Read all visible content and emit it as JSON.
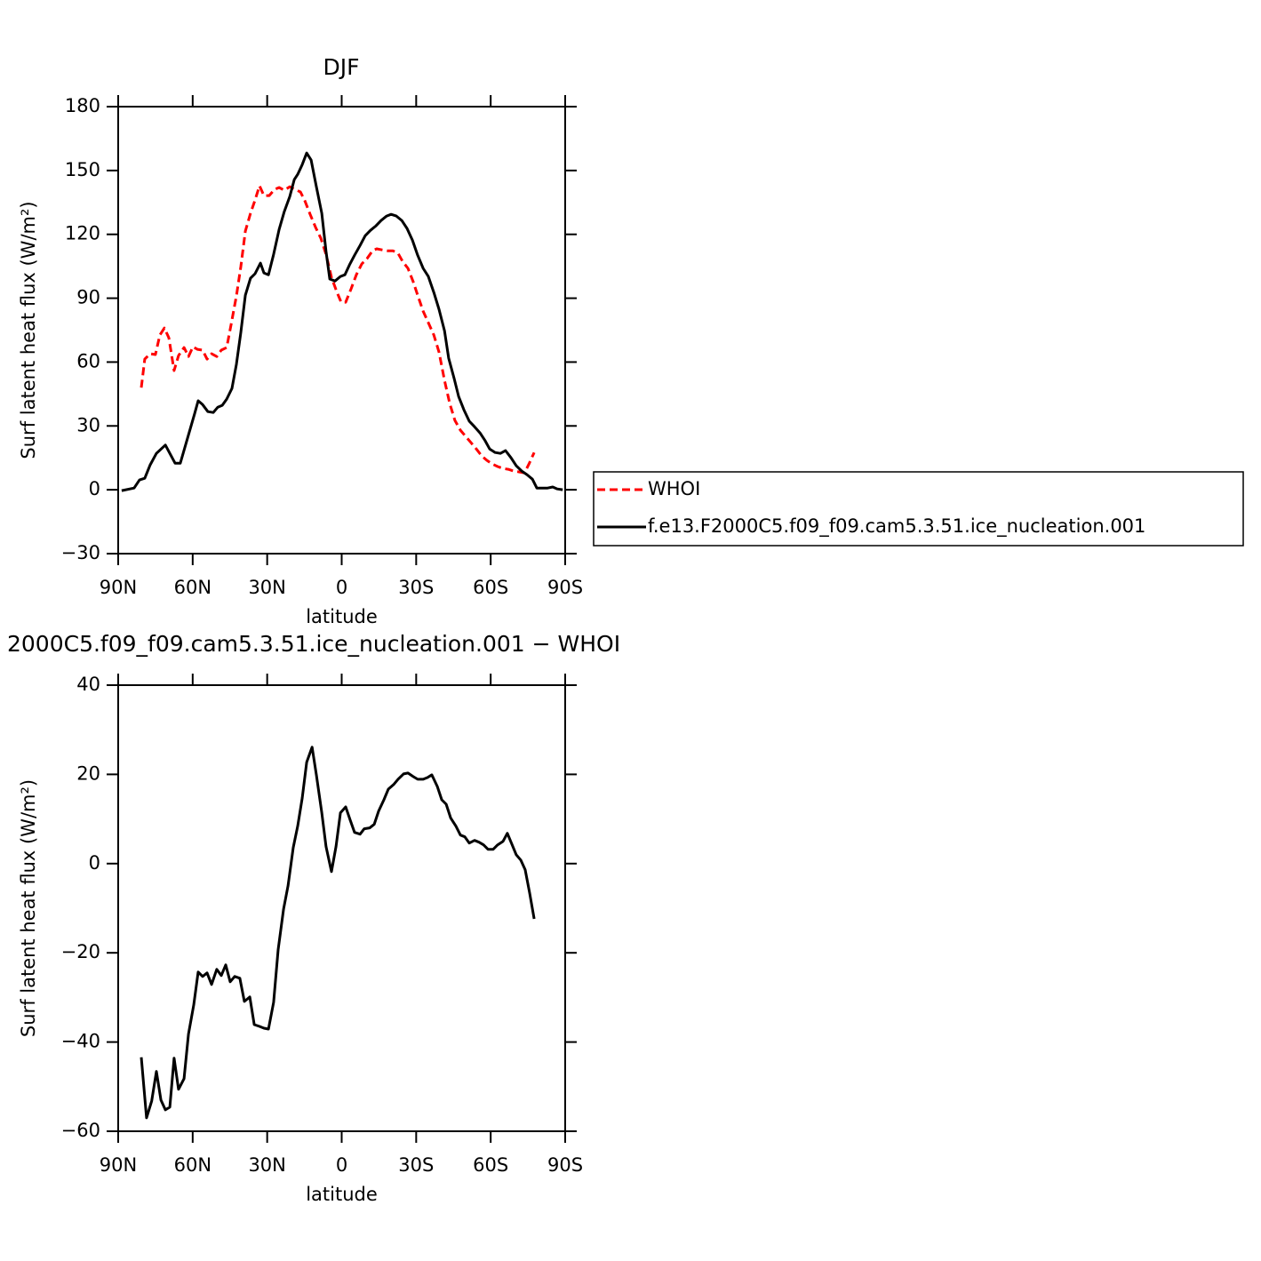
{
  "chart_data": [
    {
      "type": "line",
      "title": "DJF",
      "xlabel": "latitude",
      "ylabel": "Surf latent heat flux (W/m²)",
      "xlim": [
        90,
        -90
      ],
      "ylim": [
        -30,
        180
      ],
      "xticks": [
        {
          "value": 90,
          "label": "90N"
        },
        {
          "value": 60,
          "label": "60N"
        },
        {
          "value": 30,
          "label": "30N"
        },
        {
          "value": 0,
          "label": "0"
        },
        {
          "value": -30,
          "label": "30S"
        },
        {
          "value": -60,
          "label": "60S"
        },
        {
          "value": -90,
          "label": "90S"
        }
      ],
      "yticks": [
        {
          "value": -30,
          "label": "−30"
        },
        0,
        30,
        60,
        90,
        120,
        150,
        180
      ],
      "legend": "outside-right",
      "series": [
        {
          "name": "WHOI",
          "color": "#ff0000",
          "dash": true,
          "x": [
            80.7,
            79.3,
            77.1,
            75.0,
            73.2,
            71.4,
            69.6,
            67.5,
            65.7,
            63.5,
            61.7,
            59.9,
            58.1,
            56.0,
            54.2,
            52.4,
            50.3,
            48.5,
            46.3,
            44.5,
            42.4,
            40.6,
            38.8,
            36.7,
            34.9,
            33.1,
            31.3,
            29.2,
            27.0,
            25.2,
            23.1,
            20.9,
            18.8,
            16.6,
            14.8,
            12.7,
            10.5,
            8.4,
            6.3,
            4.1,
            2.0,
            0.2,
            -1.6,
            -3.8,
            -5.9,
            -8.1,
            -10.2,
            -12.4,
            -14.1,
            -16.3,
            -18.4,
            -20.6,
            -22.7,
            -24.5,
            -26.7,
            -28.8,
            -30.6,
            -32.8,
            -34.9,
            -37.1,
            -39.2,
            -41.4,
            -43.5,
            -45.6,
            -47.8,
            -49.9,
            -52.1,
            -54.2,
            -56.4,
            -58.5,
            -60.7,
            -62.8,
            -65.0,
            -67.1,
            -69.3,
            -71.4,
            -73.6,
            -75.4,
            -77.5
          ],
          "values": [
            48,
            61.4,
            63.9,
            63.5,
            72.7,
            76,
            71.4,
            56,
            63,
            66.8,
            62.6,
            67.2,
            66,
            65.6,
            61.4,
            63.9,
            62.6,
            65.6,
            66.8,
            77.7,
            91,
            104.8,
            121.5,
            129.9,
            136.1,
            142.8,
            138.2,
            138.2,
            141.1,
            142,
            140.7,
            142.4,
            141.1,
            139.9,
            135.7,
            129.4,
            123.2,
            118.2,
            110.6,
            99.8,
            93.1,
            88.1,
            88.1,
            94.4,
            101,
            106.1,
            108.6,
            112.3,
            113.2,
            112.7,
            112.3,
            112.3,
            111.1,
            107.3,
            104,
            97.7,
            91.4,
            83.9,
            78.5,
            72.7,
            64.7,
            51.4,
            40.5,
            32.6,
            28,
            25.1,
            22.1,
            19.2,
            15.9,
            13.8,
            12.1,
            10.9,
            10,
            9.6,
            8.8,
            8.4,
            7.9,
            12.1,
            17.5
          ]
        },
        {
          "name": "f.e13.F2000C5.f09_f09.cam5.3.51.ice_nucleation.001",
          "color": "#000000",
          "x": [
            88.6,
            83.6,
            81.4,
            79.3,
            77.1,
            74.6,
            71.0,
            67.1,
            65.0,
            62.1,
            59.2,
            57.8,
            56.0,
            53.9,
            51.7,
            49.9,
            48.1,
            46.3,
            44.2,
            42.4,
            40.6,
            38.8,
            36.7,
            34.9,
            32.7,
            31.3,
            29.5,
            27.4,
            25.2,
            23.1,
            20.9,
            19.1,
            17.7,
            15.9,
            14.1,
            12.3,
            10.2,
            8.0,
            6.3,
            4.8,
            2.7,
            0.5,
            -1.3,
            -3.1,
            -5.2,
            -7.4,
            -9.5,
            -11.6,
            -13.8,
            -15.9,
            -18.1,
            -19.9,
            -22.0,
            -24.2,
            -26.3,
            -28.5,
            -30.6,
            -32.8,
            -34.9,
            -37.1,
            -39.2,
            -41.4,
            -43.1,
            -45.3,
            -47.1,
            -49.2,
            -51.4,
            -53.5,
            -55.7,
            -57.8,
            -59.6,
            -61.8,
            -63.9,
            -66.0,
            -68.2,
            -70.3,
            -72.5,
            -74.6,
            -76.8,
            -78.6,
            -80.7,
            -82.9,
            -85.0,
            -86.8,
            -89.0
          ],
          "values": [
            -0.4,
            0.8,
            4.6,
            5.4,
            11.7,
            17.1,
            21,
            12.5,
            12.5,
            24.2,
            35.9,
            41.8,
            40,
            36.7,
            36.3,
            38.8,
            39.7,
            42.6,
            47.6,
            58.9,
            73.9,
            91.4,
            99.4,
            101.5,
            106.5,
            101.9,
            101,
            110.6,
            122.3,
            130.7,
            137.8,
            145.7,
            148.2,
            152.8,
            158.2,
            154.9,
            142.4,
            129.9,
            111.9,
            99,
            98.1,
            100.2,
            101,
            105.6,
            110.2,
            114.8,
            119.4,
            121.9,
            124,
            126.5,
            128.6,
            129.4,
            128.6,
            126.5,
            122.8,
            117.3,
            110.2,
            104,
            100.2,
            92.7,
            84.8,
            74.7,
            61.8,
            52.2,
            43.8,
            37.6,
            32.2,
            29.6,
            26.7,
            23,
            19.2,
            17.5,
            17.1,
            18.4,
            15,
            11.3,
            8.8,
            7.1,
            5,
            0.8,
            0.8,
            0.8,
            1.3,
            0.4,
            0
          ]
        }
      ]
    },
    {
      "type": "line",
      "title": "2000C5.f09_f09.cam5.3.51.ice_nucleation.001 − WHOI",
      "xlabel": "latitude",
      "ylabel": "Surf latent heat flux (W/m²)",
      "xlim": [
        90,
        -90
      ],
      "ylim": [
        -60,
        40
      ],
      "xticks": [
        {
          "value": 90,
          "label": "90N"
        },
        {
          "value": 60,
          "label": "60N"
        },
        {
          "value": 30,
          "label": "30N"
        },
        {
          "value": 0,
          "label": "0"
        },
        {
          "value": -30,
          "label": "30S"
        },
        {
          "value": -60,
          "label": "60S"
        },
        {
          "value": -90,
          "label": "90S"
        }
      ],
      "yticks": [
        {
          "value": -60,
          "label": "−60"
        },
        {
          "value": -40,
          "label": "−40"
        },
        {
          "value": -20,
          "label": "−20"
        },
        0,
        20,
        40
      ],
      "color": "#000000",
      "x": [
        80.7,
        78.6,
        76.5,
        74.6,
        72.8,
        71.0,
        69.2,
        67.5,
        65.7,
        63.5,
        61.7,
        59.6,
        57.8,
        56.0,
        54.2,
        52.4,
        50.3,
        48.5,
        46.7,
        44.9,
        43.1,
        41.0,
        39.2,
        37.0,
        35.2,
        33.1,
        31.3,
        29.5,
        27.4,
        25.6,
        23.4,
        21.6,
        19.5,
        17.7,
        15.9,
        14.1,
        11.9,
        10.2,
        8.0,
        6.3,
        4.1,
        2.3,
        0.5,
        -1.6,
        -3.4,
        -5.2,
        -7.4,
        -9.1,
        -11.3,
        -13.1,
        -14.9,
        -17.0,
        -18.8,
        -20.9,
        -22.7,
        -24.9,
        -26.7,
        -28.8,
        -30.6,
        -32.8,
        -34.6,
        -36.3,
        -38.5,
        -40.3,
        -42.1,
        -43.9,
        -46.0,
        -47.8,
        -49.6,
        -51.4,
        -53.5,
        -55.3,
        -57.1,
        -58.9,
        -61.0,
        -62.8,
        -65.0,
        -66.7,
        -68.5,
        -70.3,
        -72.1,
        -73.9,
        -75.7,
        -77.5
      ],
      "values": [
        -43.4,
        -57,
        -53.2,
        -46.6,
        -53,
        -55.2,
        -54.6,
        -43.6,
        -50.6,
        -48.2,
        -38.2,
        -31.7,
        -24.3,
        -25.3,
        -24.5,
        -27.1,
        -23.7,
        -25.1,
        -22.7,
        -26.5,
        -25.3,
        -25.7,
        -30.9,
        -29.9,
        -36.1,
        -36.5,
        -36.9,
        -37.1,
        -31.1,
        -19.3,
        -10.2,
        -5,
        3.6,
        8.4,
        14.7,
        22.7,
        26.1,
        19.9,
        11.4,
        3.8,
        -1.8,
        3.8,
        11.4,
        12.7,
        9.8,
        7,
        6.6,
        7.8,
        8,
        8.8,
        11.8,
        14.3,
        16.7,
        17.7,
        18.9,
        20.1,
        20.3,
        19.5,
        18.9,
        18.9,
        19.3,
        19.9,
        17.3,
        14.3,
        13.3,
        10.2,
        8.4,
        6.4,
        6,
        4.6,
        5.2,
        4.8,
        4.2,
        3.2,
        3.2,
        4.2,
        5,
        6.8,
        4.4,
        2,
        0.8,
        -1.4,
        -6.6,
        -12.4
      ]
    }
  ]
}
